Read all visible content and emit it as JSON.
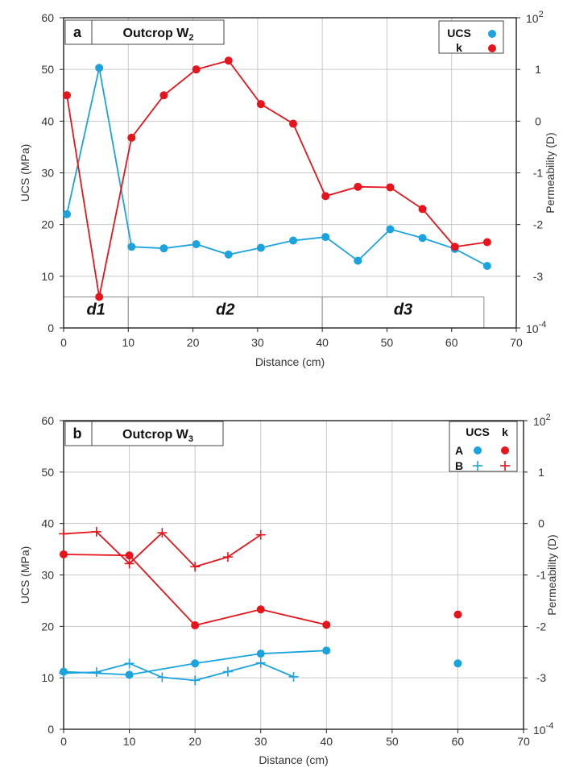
{
  "chart_data": [
    {
      "type": "line",
      "panel_letter": "a",
      "panel_title_main": "Outcrop W",
      "panel_title_sub": "2",
      "xlabel": "Distance (cm)",
      "ylabel": "UCS (MPa)",
      "y2label": "Permeability (D)",
      "xlim": [
        0,
        70
      ],
      "ylim": [
        0,
        60
      ],
      "y2lim": [
        -4,
        2
      ],
      "y2scale": "log10",
      "xticks": [
        "0",
        "10",
        "20",
        "30",
        "40",
        "50",
        "60",
        "70"
      ],
      "yticks": [
        "0",
        "10",
        "20",
        "30",
        "40",
        "50",
        "60"
      ],
      "y2ticks": [
        "-3",
        "-2",
        "-1",
        "0",
        "1"
      ],
      "y2_top_base": "10",
      "y2_top_exp": "2",
      "y2_bottom_base": "10",
      "y2_bottom_exp": "-4",
      "grid": true,
      "legend_placement": "top-right",
      "legend": [
        {
          "label": "UCS",
          "color": "#1ba3dd"
        },
        {
          "label": "k",
          "color": "#e8141b"
        }
      ],
      "zones": [
        {
          "label": "d1",
          "x0": 0,
          "x1": 10
        },
        {
          "label": "d2",
          "x0": 10,
          "x1": 40
        },
        {
          "label": "d3",
          "x0": 40,
          "x1": 65
        }
      ],
      "series": [
        {
          "name": "UCS",
          "axis": "left",
          "marker": "circle",
          "color": "#1ba3dd",
          "points": [
            [
              0.5,
              22
            ],
            [
              5.5,
              50.3
            ],
            [
              10.5,
              15.7
            ],
            [
              15.5,
              15.4
            ],
            [
              20.5,
              16.2
            ],
            [
              25.5,
              14.2
            ],
            [
              30.5,
              15.5
            ],
            [
              35.5,
              16.9
            ],
            [
              40.5,
              17.6
            ],
            [
              45.5,
              13
            ],
            [
              50.5,
              19.1
            ],
            [
              55.5,
              17.4
            ],
            [
              60.5,
              15.3
            ],
            [
              65.5,
              12
            ]
          ]
        },
        {
          "name": "k",
          "axis": "right",
          "marker": "circle",
          "color": "#e8141b",
          "points": [
            [
              0.5,
              0.5
            ],
            [
              5.5,
              -3.4
            ],
            [
              10.5,
              -0.32
            ],
            [
              15.5,
              0.5
            ],
            [
              20.5,
              1.0
            ],
            [
              25.5,
              1.17
            ],
            [
              30.5,
              0.33
            ],
            [
              35.5,
              -0.05
            ],
            [
              40.5,
              -1.45
            ],
            [
              45.5,
              -1.27
            ],
            [
              50.5,
              -1.28
            ],
            [
              55.5,
              -1.7
            ],
            [
              60.5,
              -2.43
            ],
            [
              65.5,
              -2.34
            ]
          ]
        }
      ]
    },
    {
      "type": "line",
      "panel_letter": "b",
      "panel_title_main": "Outcrop W",
      "panel_title_sub": "3",
      "xlabel": "Distance (cm)",
      "ylabel": "UCS (MPa)",
      "y2label": "Permeability (D)",
      "xlim": [
        0,
        70
      ],
      "ylim": [
        0,
        60
      ],
      "y2lim": [
        -4,
        2
      ],
      "y2scale": "log10",
      "xticks": [
        "0",
        "10",
        "20",
        "30",
        "40",
        "50",
        "60",
        "70"
      ],
      "yticks": [
        "0",
        "10",
        "20",
        "30",
        "40",
        "50",
        "60"
      ],
      "y2ticks": [
        "-3",
        "-2",
        "-1",
        "0",
        "1"
      ],
      "y2_top_base": "10",
      "y2_top_exp": "2",
      "y2_bottom_base": "10",
      "y2_bottom_exp": "-4",
      "grid": true,
      "legend_placement": "top-right",
      "legend_columns": [
        "UCS",
        "k"
      ],
      "legend_rows": [
        "A",
        "B"
      ],
      "series": [
        {
          "name": "UCS A",
          "axis": "left",
          "marker": "circle",
          "color": "#1ba3dd",
          "points": [
            [
              0,
              11.2
            ],
            [
              10,
              10.6
            ],
            [
              20,
              12.8
            ],
            [
              30,
              14.7
            ],
            [
              40,
              15.3
            ]
          ]
        },
        {
          "name": "UCS A isolated",
          "axis": "left",
          "marker": "circle",
          "color": "#1ba3dd",
          "line": false,
          "points": [
            [
              60,
              12.8
            ]
          ]
        },
        {
          "name": "UCS B",
          "axis": "left",
          "marker": "plus",
          "color": "#1ba3dd",
          "points": [
            [
              0,
              10.9
            ],
            [
              5,
              11.1
            ],
            [
              10,
              12.8
            ],
            [
              15,
              10.1
            ],
            [
              20,
              9.5
            ],
            [
              25,
              11.2
            ],
            [
              30,
              12.9
            ],
            [
              35,
              10.2
            ]
          ]
        },
        {
          "name": "k A",
          "axis": "right",
          "marker": "circle",
          "color": "#e8141b",
          "points": [
            [
              0,
              -0.6
            ],
            [
              10,
              -0.62
            ],
            [
              20,
              -1.98
            ],
            [
              30,
              -1.67
            ],
            [
              40,
              -1.97
            ]
          ]
        },
        {
          "name": "k A isolated",
          "axis": "right",
          "marker": "circle",
          "color": "#e8141b",
          "line": false,
          "points": [
            [
              60,
              -1.77
            ]
          ]
        },
        {
          "name": "k B",
          "axis": "right",
          "marker": "plus",
          "color": "#e8141b",
          "points": [
            [
              0,
              -0.2
            ],
            [
              5,
              -0.16
            ],
            [
              10,
              -0.78
            ],
            [
              15,
              -0.18
            ],
            [
              20,
              -0.84
            ],
            [
              25,
              -0.65
            ],
            [
              30,
              -0.22
            ]
          ]
        }
      ]
    }
  ]
}
